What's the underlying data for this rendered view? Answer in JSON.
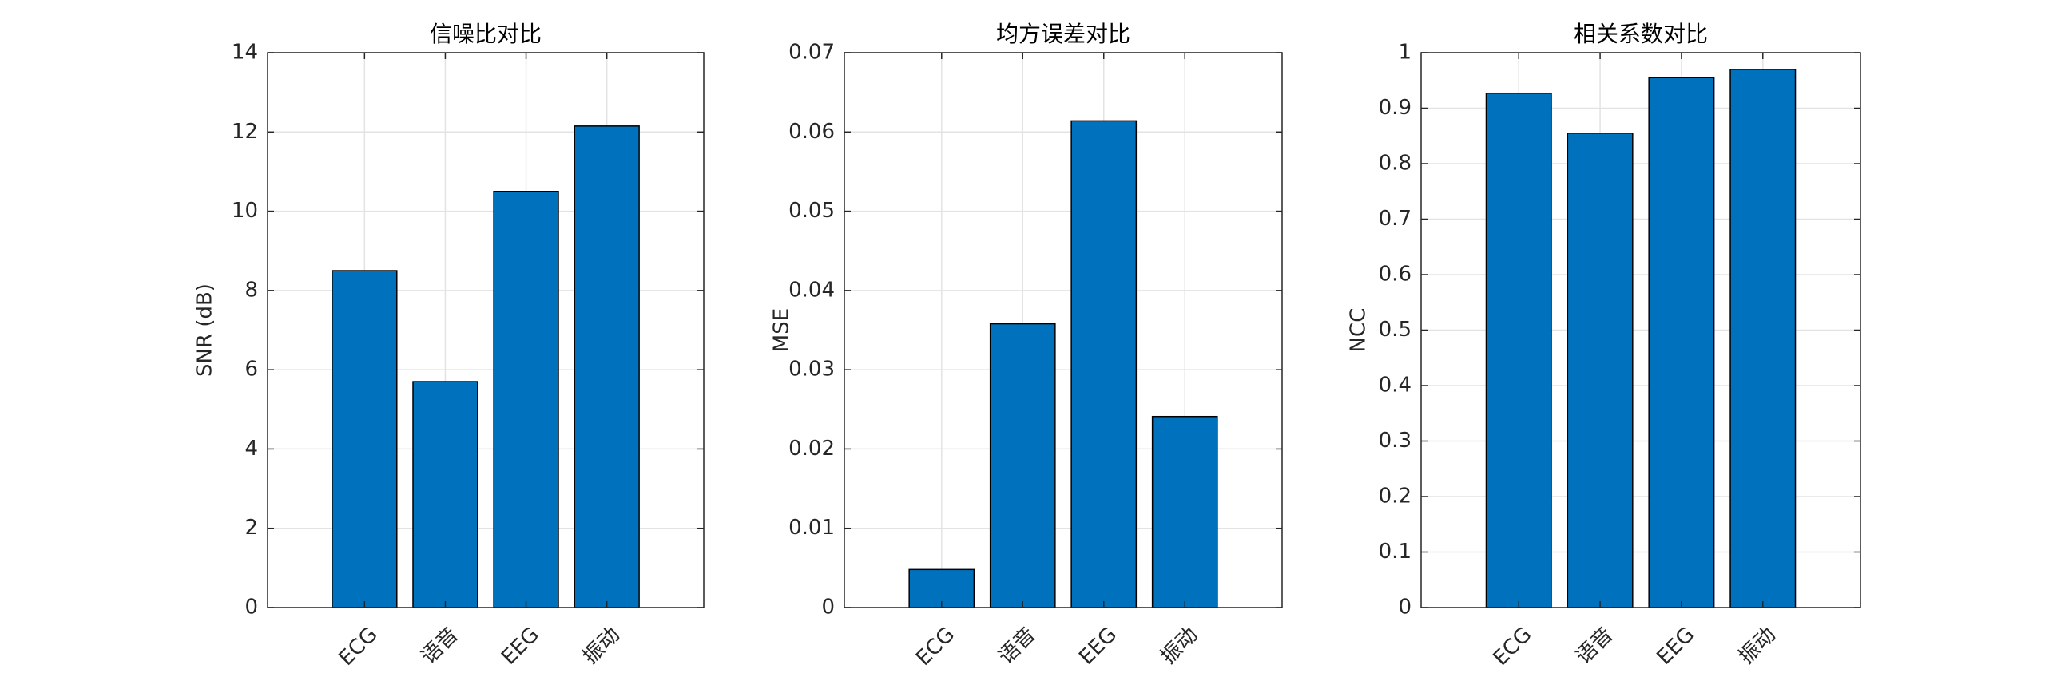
{
  "chart_data": [
    {
      "type": "bar",
      "title": "信噪比对比",
      "y_label": "SNR (dB)",
      "categories": [
        "ECG",
        "语音",
        "EEG",
        "振动"
      ],
      "values": [
        8.5,
        5.7,
        10.5,
        12.15
      ],
      "color": "#0072BD",
      "ylim": [
        0,
        14
      ],
      "yticks": [
        0,
        2,
        4,
        6,
        8,
        10,
        12,
        14
      ],
      "grid": true
    },
    {
      "type": "bar",
      "title": "均方误差对比",
      "y_label": "MSE",
      "categories": [
        "ECG",
        "语音",
        "EEG",
        "振动"
      ],
      "values": [
        0.0048,
        0.0358,
        0.0614,
        0.0241
      ],
      "color": "#0072BD",
      "ylim": [
        0,
        0.07
      ],
      "yticks": [
        0,
        0.01,
        0.02,
        0.03,
        0.04,
        0.05,
        0.06,
        0.07
      ],
      "grid": true
    },
    {
      "type": "bar",
      "title": "相关系数对比",
      "y_label": "NCC",
      "categories": [
        "ECG",
        "语音",
        "EEG",
        "振动"
      ],
      "values": [
        0.927,
        0.855,
        0.955,
        0.97
      ],
      "color": "#0072BD",
      "ylim": [
        0,
        1
      ],
      "yticks": [
        0,
        0.1,
        0.2,
        0.3,
        0.4,
        0.5,
        0.6,
        0.7,
        0.8,
        0.9,
        1
      ],
      "grid": true
    }
  ]
}
